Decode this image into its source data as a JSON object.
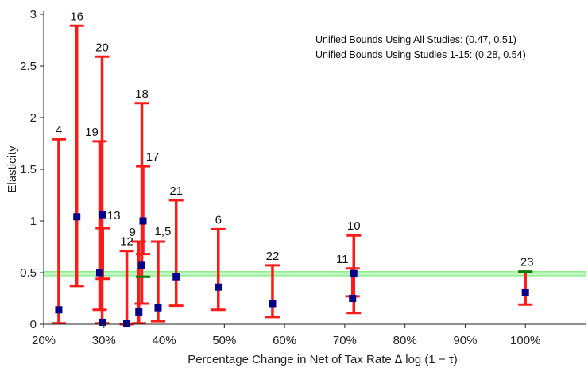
{
  "chart_data": {
    "type": "scatter",
    "title": "",
    "xlabel": "Percentage Change in Net of Tax Rate ∆ log (1 − τ)",
    "ylabel": "Elasticity",
    "xlim": [
      20,
      110
    ],
    "ylim": [
      0,
      3
    ],
    "xticks": [
      20,
      30,
      40,
      50,
      60,
      70,
      80,
      90,
      100
    ],
    "xtick_labels": [
      "20%",
      "30%",
      "40%",
      "50%",
      "60%",
      "70%",
      "80%",
      "90%",
      "100%"
    ],
    "yticks": [
      0,
      0.5,
      1,
      1.5,
      2,
      2.5,
      3
    ],
    "ytick_labels": [
      "0",
      "0.5",
      "1",
      "1.5",
      "2",
      "2.5",
      "3"
    ],
    "grid": false,
    "legend_position": "top-right",
    "annotations": [
      "Unified Bounds Using All Studies: (0.47, 0.51)",
      "Unified Bounds Using Studies 1-15: (0.28, 0.54)"
    ],
    "unified_band_all": [
      0.47,
      0.51
    ],
    "colors": {
      "interval": "#ff1a1a",
      "point": "#00008b",
      "band": "#90ee90",
      "bound_segment": "#008000"
    },
    "intervals": [
      {
        "label": "4",
        "x": 22.5,
        "lo": 0.01,
        "hi": 1.79,
        "point": 0.14
      },
      {
        "label": "16",
        "x": 25.5,
        "lo": 0.37,
        "hi": 2.89,
        "point": 1.04
      },
      {
        "label": "19",
        "x": 29.3,
        "lo": 0.14,
        "hi": 1.77,
        "point": 0.5
      },
      {
        "label": "20",
        "x": 29.7,
        "lo": 0.01,
        "hi": 2.59,
        "point": 0.02
      },
      {
        "label": "13",
        "x": 29.8,
        "lo": 0.44,
        "hi": 0.93,
        "point": 1.06
      },
      {
        "label": "12",
        "x": 33.8,
        "lo": 0.0,
        "hi": 0.71,
        "point": 0.01
      },
      {
        "label": "9",
        "x": 35.8,
        "lo": 0.01,
        "hi": 0.8,
        "point": 0.12
      },
      {
        "label": "18",
        "x": 36.3,
        "lo": 0.2,
        "hi": 2.14,
        "point": 0.57
      },
      {
        "label": "17",
        "x": 36.5,
        "lo": 0.68,
        "hi": 1.53,
        "point": 1.0
      },
      {
        "label": "1,5",
        "x": 39.0,
        "lo": 0.03,
        "hi": 0.8,
        "point": 0.16
      },
      {
        "label": "21",
        "x": 42.0,
        "lo": 0.18,
        "hi": 1.2,
        "point": 0.46
      },
      {
        "label": "6",
        "x": 49.0,
        "lo": 0.14,
        "hi": 0.92,
        "point": 0.36
      },
      {
        "label": "22",
        "x": 58.0,
        "lo": 0.07,
        "hi": 0.57,
        "point": 0.2
      },
      {
        "label": "11",
        "x": 71.3,
        "lo": 0.27,
        "hi": 0.54,
        "point": 0.25
      },
      {
        "label": "10",
        "x": 71.5,
        "lo": 0.11,
        "hi": 0.86,
        "point": 0.49
      },
      {
        "label": "23",
        "x": 100.0,
        "lo": 0.19,
        "hi": 0.51,
        "point": 0.31
      }
    ],
    "bound_segments": [
      {
        "x": 36.5,
        "y": 0.46
      },
      {
        "x": 100.0,
        "y": 0.51
      }
    ]
  }
}
